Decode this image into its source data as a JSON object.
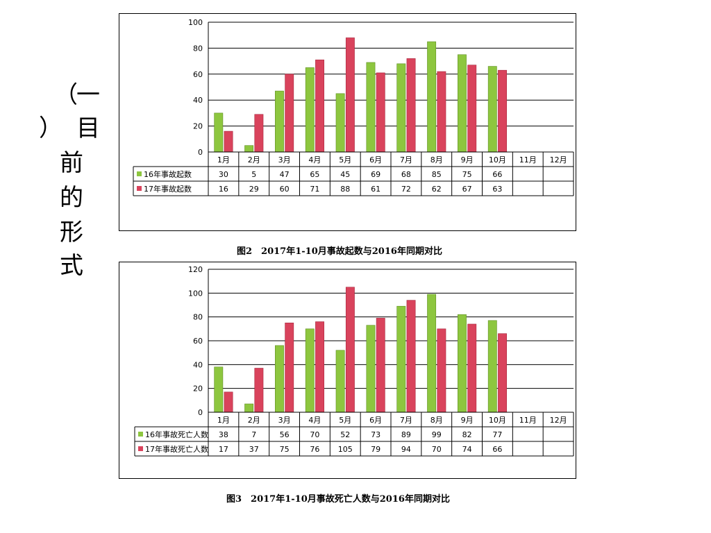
{
  "slide": {
    "side_title_chars": [
      "（",
      "一",
      "）",
      "目",
      "前",
      "的",
      "形",
      "式"
    ]
  },
  "colors": {
    "series_2016": "#8dc63f",
    "series_2016_dark": "#5f8f22",
    "series_2017": "#d9435c",
    "series_2017_dark": "#a8283e",
    "grid": "#000000"
  },
  "chart_data": [
    {
      "type": "bar",
      "caption": "图2　2017年1-10月事故起数与2016年同期对比",
      "categories": [
        "1月",
        "2月",
        "3月",
        "4月",
        "5月",
        "6月",
        "7月",
        "8月",
        "9月",
        "10月",
        "11月",
        "12月"
      ],
      "series": [
        {
          "name": "16年事故起数",
          "values": [
            30,
            5,
            47,
            65,
            45,
            69,
            68,
            85,
            75,
            66,
            null,
            null
          ]
        },
        {
          "name": "17年事故起数",
          "values": [
            16,
            29,
            60,
            71,
            88,
            61,
            72,
            62,
            67,
            63,
            null,
            null
          ]
        }
      ],
      "ylim": [
        0,
        100
      ],
      "yticks": [
        0,
        20,
        40,
        60,
        80,
        100
      ],
      "grid": true,
      "legend": "data-table"
    },
    {
      "type": "bar",
      "caption": "图3　2017年1-10月事故死亡人数与2016年同期对比",
      "categories": [
        "1月",
        "2月",
        "3月",
        "4月",
        "5月",
        "6月",
        "7月",
        "8月",
        "9月",
        "10月",
        "11月",
        "12月"
      ],
      "series": [
        {
          "name": "16年事故死亡人数",
          "values": [
            38,
            7,
            56,
            70,
            52,
            73,
            89,
            99,
            82,
            77,
            null,
            null
          ]
        },
        {
          "name": "17年事故死亡人数",
          "values": [
            17,
            37,
            75,
            76,
            105,
            79,
            94,
            70,
            74,
            66,
            null,
            null
          ]
        }
      ],
      "ylim": [
        0,
        120
      ],
      "yticks": [
        0,
        20,
        40,
        60,
        80,
        100,
        120
      ],
      "grid": true,
      "legend": "data-table"
    }
  ]
}
